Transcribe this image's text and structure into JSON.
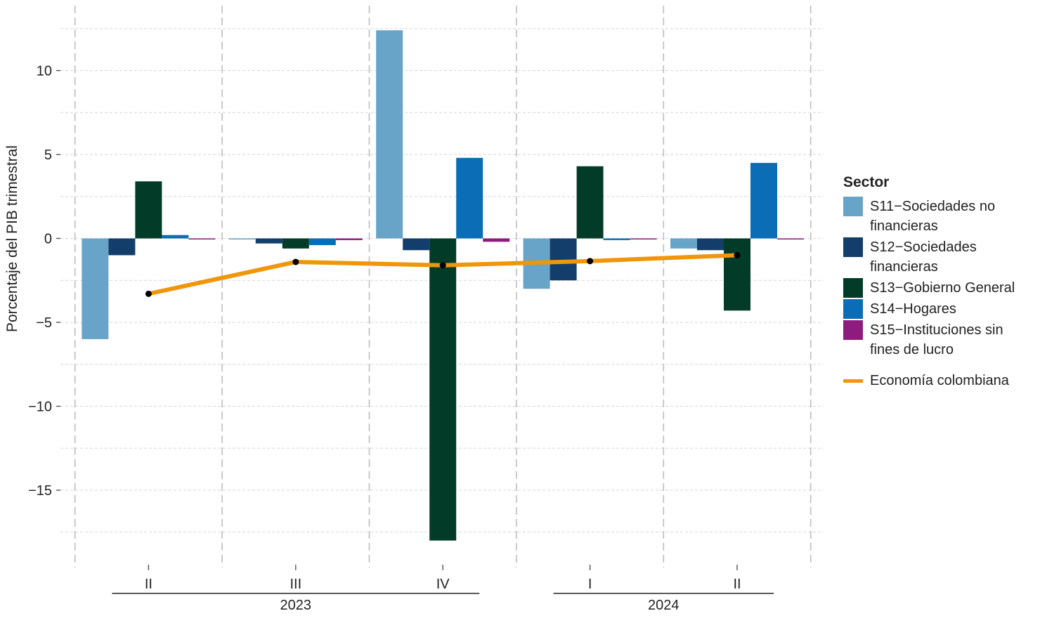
{
  "chart_data": {
    "type": "bar",
    "ylabel": "Porcentaje del PIB trimestral",
    "ylim": [
      -18.7,
      13.9
    ],
    "y_ticks": [
      10,
      5,
      0,
      -5,
      -10,
      -15
    ],
    "y_tick_labels": [
      "10",
      "5",
      "0",
      "−5",
      "−10",
      "−15"
    ],
    "categories": [
      "II",
      "III",
      "IV",
      "I",
      "II"
    ],
    "year_groups": [
      {
        "label": "2023",
        "categories": [
          "II",
          "III",
          "IV"
        ]
      },
      {
        "label": "2024",
        "categories": [
          "I",
          "II"
        ]
      }
    ],
    "legend_title": "Sector",
    "legend_position": "right",
    "grid": true,
    "series": [
      {
        "name": "S11−Sociedades no\n      financieras",
        "color": "#68a3c8",
        "values": [
          -6.0,
          0.0,
          12.4,
          -3.0,
          -0.6
        ]
      },
      {
        "name": "S12−Sociedades\n      financieras",
        "color": "#133e6b",
        "values": [
          -1.0,
          -0.3,
          -0.7,
          -2.5,
          -0.7
        ]
      },
      {
        "name": "S13−Gobierno General",
        "color": "#023b28",
        "values": [
          3.4,
          -0.6,
          -18.0,
          4.3,
          -4.3
        ]
      },
      {
        "name": "S14−Hogares",
        "color": "#0a6db5",
        "values": [
          0.2,
          -0.4,
          4.8,
          -0.1,
          4.5
        ]
      },
      {
        "name": "S15−Instituciones sin\n      fines de lucro",
        "color": "#8e1c7f",
        "values": [
          -0.05,
          -0.1,
          -0.2,
          -0.05,
          -0.05
        ]
      }
    ],
    "line_series": {
      "name": "Economía colombiana",
      "color": "#f0960a",
      "values": [
        -3.3,
        -1.4,
        -1.6,
        -1.35,
        -1.0
      ]
    }
  }
}
